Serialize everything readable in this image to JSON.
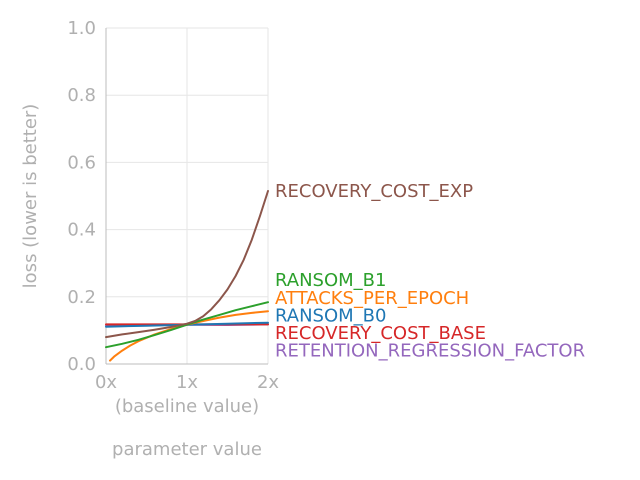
{
  "chart_data": {
    "type": "line",
    "xlabel": "parameter value",
    "xlabel_note": "(baseline value)",
    "ylabel": "loss (lower is better)",
    "xlim": [
      0,
      2
    ],
    "ylim": [
      0,
      1
    ],
    "x_ticks": [
      {
        "value": 0,
        "label": "0x"
      },
      {
        "value": 1,
        "label": "1x"
      },
      {
        "value": 2,
        "label": "2x"
      }
    ],
    "y_ticks": [
      {
        "value": 0.0,
        "label": "0.0"
      },
      {
        "value": 0.2,
        "label": "0.2"
      },
      {
        "value": 0.4,
        "label": "0.4"
      },
      {
        "value": 0.6,
        "label": "0.6"
      },
      {
        "value": 0.8,
        "label": "0.8"
      },
      {
        "value": 1.0,
        "label": "1.0"
      }
    ],
    "grid": true,
    "legend": "labels at line ends",
    "series": [
      {
        "name": "RECOVERY_COST_EXP",
        "color": "#8c564b",
        "x": [
          0.0,
          0.2,
          0.4,
          0.6,
          0.8,
          1.0,
          1.1,
          1.2,
          1.3,
          1.4,
          1.5,
          1.6,
          1.7,
          1.8,
          1.9,
          2.0
        ],
        "y": [
          0.08,
          0.088,
          0.095,
          0.102,
          0.11,
          0.12,
          0.128,
          0.142,
          0.163,
          0.19,
          0.222,
          0.262,
          0.31,
          0.37,
          0.44,
          0.515
        ]
      },
      {
        "name": "RANSOM_B1",
        "color": "#2ca02c",
        "x": [
          0.0,
          0.2,
          0.4,
          0.6,
          0.8,
          1.0,
          1.2,
          1.4,
          1.6,
          1.8,
          2.0
        ],
        "y": [
          0.05,
          0.06,
          0.072,
          0.086,
          0.101,
          0.117,
          0.132,
          0.146,
          0.16,
          0.172,
          0.184
        ]
      },
      {
        "name": "ATTACKS_PER_EPOCH",
        "color": "#ff7f0e",
        "x": [
          0.05,
          0.1,
          0.2,
          0.3,
          0.4,
          0.6,
          0.8,
          1.0,
          1.2,
          1.4,
          1.6,
          1.8,
          2.0
        ],
        "y": [
          0.01,
          0.022,
          0.04,
          0.055,
          0.068,
          0.088,
          0.104,
          0.117,
          0.128,
          0.138,
          0.146,
          0.152,
          0.157
        ]
      },
      {
        "name": "RANSOM_B0",
        "color": "#1f77b4",
        "x": [
          0.0,
          0.5,
          1.0,
          1.5,
          2.0
        ],
        "y": [
          0.111,
          0.114,
          0.117,
          0.12,
          0.123
        ]
      },
      {
        "name": "RECOVERY_COST_BASE",
        "color": "#d62728",
        "x": [
          0.0,
          0.5,
          1.0,
          1.5,
          2.0
        ],
        "y": [
          0.118,
          0.118,
          0.118,
          0.118,
          0.118
        ]
      },
      {
        "name": "RETENTION_REGRESSION_FACTOR",
        "color": "#9467bd",
        "x": [
          0.0,
          0.5,
          1.0,
          1.5,
          2.0
        ],
        "y": [
          0.115,
          0.116,
          0.117,
          0.116,
          0.118
        ]
      }
    ]
  },
  "end_labels": [
    {
      "text": "RECOVERY_COST_EXP",
      "color": "#8c564b",
      "y": 0.515
    },
    {
      "text": "RANSOM_B1",
      "color": "#2ca02c",
      "y": 0.25
    },
    {
      "text": "ATTACKS_PER_EPOCH",
      "color": "#ff7f0e",
      "y": 0.197
    },
    {
      "text": "RANSOM_B0",
      "color": "#1f77b4",
      "y": 0.145
    },
    {
      "text": "RECOVERY_COST_BASE",
      "color": "#d62728",
      "y": 0.093
    },
    {
      "text": "RETENTION_REGRESSION_FACTOR",
      "color": "#9467bd",
      "y": 0.04
    }
  ]
}
